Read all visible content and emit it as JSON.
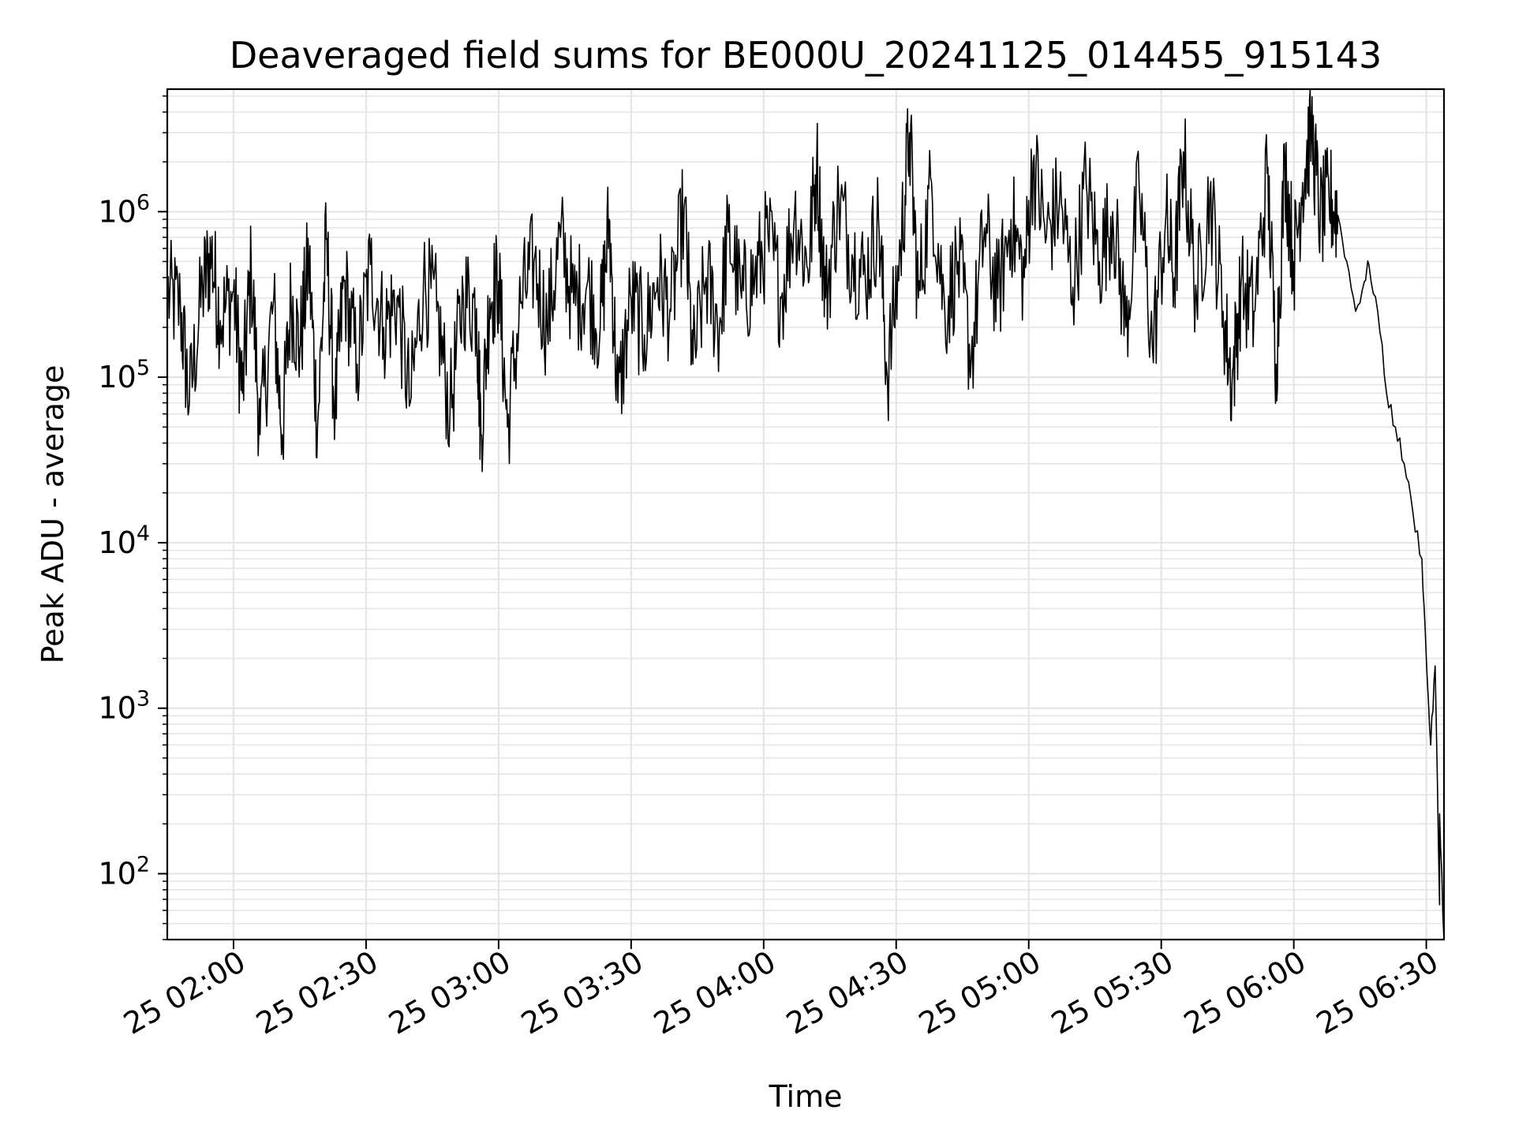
{
  "chart_data": {
    "type": "line",
    "title": "Deaveraged field sums for BE000U_20241125_014455_915143",
    "xlabel": "Time",
    "ylabel": "Peak ADU - average",
    "yscale": "log",
    "ylim": [
      40,
      5500000
    ],
    "xlim": [
      "2024-11-25 01:45",
      "2024-11-25 06:34"
    ],
    "x_ticks": [
      "25 02:00",
      "25 02:30",
      "25 03:00",
      "25 03:30",
      "25 04:00",
      "25 04:30",
      "25 05:00",
      "25 05:30",
      "25 06:00",
      "25 06:30"
    ],
    "y_ticks": [
      {
        "base": "10",
        "exp": "2",
        "value": 100
      },
      {
        "base": "10",
        "exp": "3",
        "value": 1000
      },
      {
        "base": "10",
        "exp": "4",
        "value": 10000
      },
      {
        "base": "10",
        "exp": "5",
        "value": 100000
      },
      {
        "base": "10",
        "exp": "6",
        "value": 1000000
      }
    ],
    "grid": true,
    "line_color": "#000000",
    "grid_color": "#e5e5e5",
    "series": [
      {
        "points": [
          [
            "2024-11-25 01:45",
            320000
          ],
          [
            "2024-11-25 01:48",
            260000
          ],
          [
            "2024-11-25 01:50",
            70000
          ],
          [
            "2024-11-25 01:53",
            350000
          ],
          [
            "2024-11-25 01:55",
            550000
          ],
          [
            "2024-11-25 01:57",
            220000
          ],
          [
            "2024-11-25 02:00",
            330000
          ],
          [
            "2024-11-25 02:02",
            80000
          ],
          [
            "2024-11-25 02:04",
            460000
          ],
          [
            "2024-11-25 02:06",
            45000
          ],
          [
            "2024-11-25 02:09",
            280000
          ],
          [
            "2024-11-25 02:11",
            45000
          ],
          [
            "2024-11-25 02:13",
            300000
          ],
          [
            "2024-11-25 02:15",
            150000
          ],
          [
            "2024-11-25 02:17",
            520000
          ],
          [
            "2024-11-25 02:19",
            50000
          ],
          [
            "2024-11-25 02:21",
            680000
          ],
          [
            "2024-11-25 02:23",
            60000
          ],
          [
            "2024-11-25 02:25",
            380000
          ],
          [
            "2024-11-25 02:28",
            120000
          ],
          [
            "2024-11-25 02:31",
            480000
          ],
          [
            "2024-11-25 02:34",
            200000
          ],
          [
            "2024-11-25 02:37",
            300000
          ],
          [
            "2024-11-25 02:40",
            70000
          ],
          [
            "2024-11-25 02:43",
            380000
          ],
          [
            "2024-11-25 02:46",
            250000
          ],
          [
            "2024-11-25 02:49",
            60000
          ],
          [
            "2024-11-25 02:52",
            320000
          ],
          [
            "2024-11-25 02:55",
            260000
          ],
          [
            "2024-11-25 02:56",
            45000
          ],
          [
            "2024-11-25 02:58",
            300000
          ],
          [
            "2024-11-25 03:00",
            380000
          ],
          [
            "2024-11-25 03:02",
            50000
          ],
          [
            "2024-11-25 03:05",
            280000
          ],
          [
            "2024-11-25 03:08",
            500000
          ],
          [
            "2024-11-25 03:11",
            200000
          ],
          [
            "2024-11-25 03:14",
            700000
          ],
          [
            "2024-11-25 03:17",
            280000
          ],
          [
            "2024-11-25 03:20",
            360000
          ],
          [
            "2024-11-25 03:23",
            200000
          ],
          [
            "2024-11-25 03:25",
            900000
          ],
          [
            "2024-11-25 03:27",
            70000
          ],
          [
            "2024-11-25 03:30",
            300000
          ],
          [
            "2024-11-25 03:33",
            180000
          ],
          [
            "2024-11-25 03:36",
            400000
          ],
          [
            "2024-11-25 03:39",
            250000
          ],
          [
            "2024-11-25 03:42",
            1050000
          ],
          [
            "2024-11-25 03:44",
            120000
          ],
          [
            "2024-11-25 03:47",
            400000
          ],
          [
            "2024-11-25 03:50",
            200000
          ],
          [
            "2024-11-25 03:52",
            750000
          ],
          [
            "2024-11-25 03:55",
            300000
          ],
          [
            "2024-11-25 03:58",
            400000
          ],
          [
            "2024-11-25 04:01",
            700000
          ],
          [
            "2024-11-25 04:04",
            300000
          ],
          [
            "2024-11-25 04:07",
            1000000
          ],
          [
            "2024-11-25 04:10",
            450000
          ],
          [
            "2024-11-25 04:12",
            2000000
          ],
          [
            "2024-11-25 04:14",
            300000
          ],
          [
            "2024-11-25 04:17",
            1200000
          ],
          [
            "2024-11-25 04:20",
            550000
          ],
          [
            "2024-11-25 04:23",
            400000
          ],
          [
            "2024-11-25 04:26",
            900000
          ],
          [
            "2024-11-25 04:28",
            100000
          ],
          [
            "2024-11-25 04:31",
            600000
          ],
          [
            "2024-11-25 04:33",
            3000000
          ],
          [
            "2024-11-25 04:35",
            300000
          ],
          [
            "2024-11-25 04:38",
            1500000
          ],
          [
            "2024-11-25 04:41",
            250000
          ],
          [
            "2024-11-25 04:44",
            500000
          ],
          [
            "2024-11-25 04:47",
            130000
          ],
          [
            "2024-11-25 04:50",
            800000
          ],
          [
            "2024-11-25 04:53",
            300000
          ],
          [
            "2024-11-25 04:56",
            900000
          ],
          [
            "2024-11-25 04:59",
            400000
          ],
          [
            "2024-11-25 05:01",
            2000000
          ],
          [
            "2024-11-25 05:04",
            700000
          ],
          [
            "2024-11-25 05:07",
            1200000
          ],
          [
            "2024-11-25 05:10",
            350000
          ],
          [
            "2024-11-25 05:13",
            1500000
          ],
          [
            "2024-11-25 05:16",
            500000
          ],
          [
            "2024-11-25 05:19",
            1000000
          ],
          [
            "2024-11-25 05:22",
            200000
          ],
          [
            "2024-11-25 05:25",
            1400000
          ],
          [
            "2024-11-25 05:28",
            150000
          ],
          [
            "2024-11-25 05:31",
            900000
          ],
          [
            "2024-11-25 05:33",
            400000
          ],
          [
            "2024-11-25 05:35",
            2300000
          ],
          [
            "2024-11-25 05:38",
            300000
          ],
          [
            "2024-11-25 05:41",
            1300000
          ],
          [
            "2024-11-25 05:44",
            250000
          ],
          [
            "2024-11-25 05:46",
            90000
          ],
          [
            "2024-11-25 05:48",
            350000
          ],
          [
            "2024-11-25 05:51",
            250000
          ],
          [
            "2024-11-25 05:54",
            1700000
          ],
          [
            "2024-11-25 05:56",
            120000
          ],
          [
            "2024-11-25 05:58",
            2000000
          ],
          [
            "2024-11-25 06:00",
            500000
          ],
          [
            "2024-11-25 06:02",
            1500000
          ],
          [
            "2024-11-25 06:04",
            3200000
          ],
          [
            "2024-11-25 06:06",
            900000
          ],
          [
            "2024-11-25 06:08",
            1200000
          ],
          [
            "2024-11-25 06:10",
            950000
          ],
          [
            "2024-11-25 06:12",
            500000
          ],
          [
            "2024-11-25 06:14",
            250000
          ],
          [
            "2024-11-25 06:16",
            380000
          ],
          [
            "2024-11-25 06:17",
            480000
          ],
          [
            "2024-11-25 06:19",
            250000
          ],
          [
            "2024-11-25 06:21",
            80000
          ],
          [
            "2024-11-25 06:23",
            50000
          ],
          [
            "2024-11-25 06:25",
            30000
          ],
          [
            "2024-11-25 06:27",
            15000
          ],
          [
            "2024-11-25 06:29",
            8000
          ],
          [
            "2024-11-25 06:30",
            2000
          ],
          [
            "2024-11-25 06:31",
            600
          ],
          [
            "2024-11-25 06:32",
            1800
          ],
          [
            "2024-11-25 06:33",
            65
          ],
          [
            "2024-11-25 06:33",
            230
          ],
          [
            "2024-11-25 06:34",
            40
          ]
        ]
      }
    ]
  }
}
